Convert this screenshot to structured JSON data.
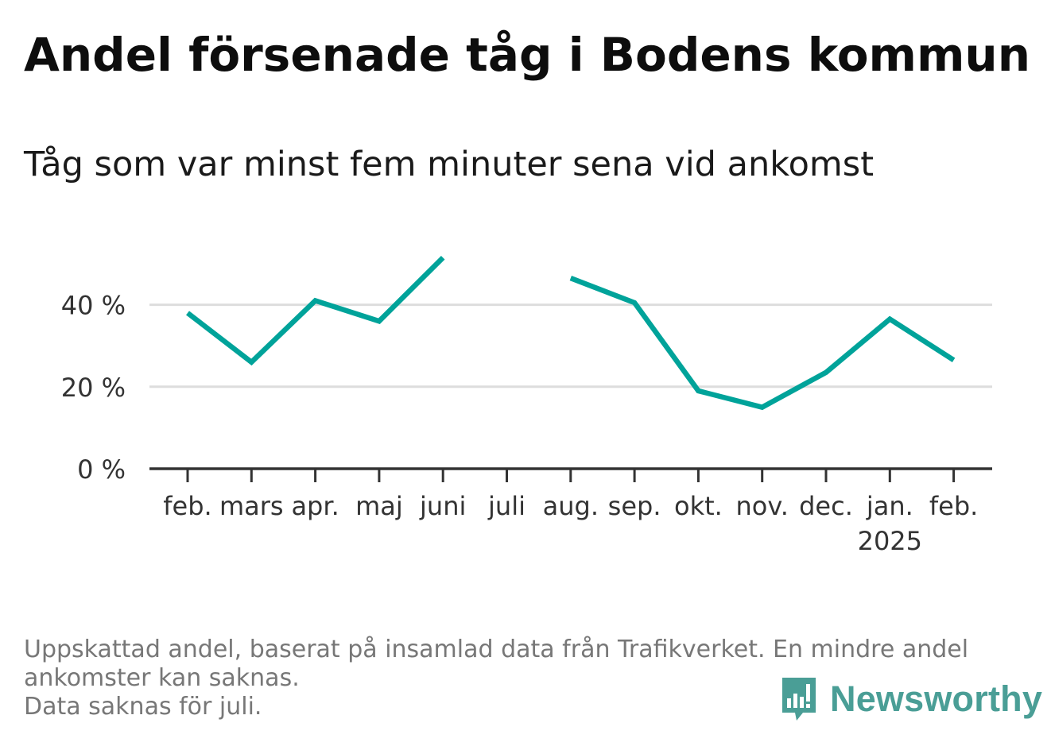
{
  "header": {
    "title": "Andel försenade tåg i Bodens kommun",
    "subtitle": "Tåg som var minst fem minuter sena vid ankomst"
  },
  "chart_data": {
    "type": "line",
    "categories": [
      "feb.",
      "mars",
      "apr.",
      "maj",
      "juni",
      "juli",
      "aug.",
      "sep.",
      "okt.",
      "nov.",
      "dec.",
      "jan.",
      "feb."
    ],
    "year_label": {
      "category_index": 11,
      "text": "2025"
    },
    "series": [
      {
        "values": [
          38,
          26,
          41,
          36,
          51.5,
          null,
          46.5,
          40.5,
          19,
          15,
          23.5,
          36.5,
          26.5
        ],
        "color": "#00a39a"
      }
    ],
    "ylim": [
      0,
      52
    ],
    "yticks": [
      {
        "value": 0,
        "label": "0 %"
      },
      {
        "value": 20,
        "label": "20 %"
      },
      {
        "value": 40,
        "label": "40 %"
      }
    ],
    "grid": true,
    "legend": "none",
    "colors": {
      "gridline": "#dddddd",
      "axis": "#333333",
      "tick_label": "#333333"
    }
  },
  "footer": {
    "note_line1": "Uppskattad andel, baserat på insamlad data från Trafikverket. En mindre andel",
    "note_line2": "ankomster kan saknas.",
    "note_line3": "Data saknas för juli.",
    "brand": "Newsworthy",
    "brand_color": "#4a9e96",
    "brand_icon": "bar-chart-speech-bubble-icon"
  }
}
